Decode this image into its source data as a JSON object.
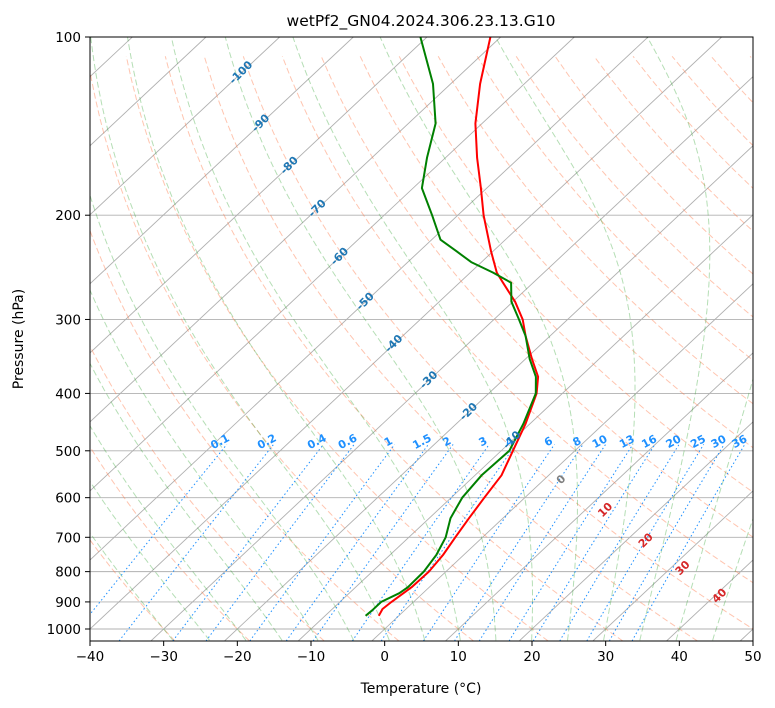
{
  "chart_data": {
    "type": "line",
    "subtype": "skew-t log-p diagram",
    "title": "wetPf2_GN04.2024.306.23.13.G10",
    "xlabel": "Temperature (°C)",
    "ylabel": "Pressure (hPa)",
    "xlim": [
      -40,
      50
    ],
    "ylim": [
      1050,
      100
    ],
    "y_scale": "log",
    "grid": true,
    "x_ticks": [
      "−40",
      "−30",
      "−20",
      "−10",
      "0",
      "10",
      "20",
      "30",
      "40",
      "50"
    ],
    "y_ticks": [
      "100",
      "200",
      "300",
      "400",
      "500",
      "600",
      "700",
      "800",
      "900",
      "1000"
    ],
    "isotherm_labels": [
      "-100",
      "-90",
      "-80",
      "-70",
      "-60",
      "-50",
      "-40",
      "-30",
      "-20",
      "-10"
    ],
    "mixing_ratio_labels": [
      "0.1",
      "0.2",
      "0.4",
      "0.6",
      "1",
      "1.5",
      "2",
      "3",
      "4",
      "6",
      "8",
      "10",
      "13",
      "16",
      "20",
      "25",
      "30",
      "36"
    ],
    "moist_adiabat_labels": [
      "0",
      "10",
      "20",
      "30",
      "40"
    ],
    "colors": {
      "temperature": "#ff0000",
      "dewpoint": "#008000",
      "isotherm_label": "#1f77b4",
      "mixing_ratio": "#1e90ff",
      "dry_adiabat": "#ff7f50",
      "moist_adiabat": "#2ca02c",
      "moist_label_zero": "#808080",
      "moist_label": "#d62728",
      "grid": "#b0b0b0"
    },
    "series": [
      {
        "name": "",
        "variable": "temperature",
        "p": [
          950,
          925,
          900,
          850,
          800,
          750,
          700,
          650,
          600,
          550,
          500,
          450,
          400,
          375,
          350,
          320,
          300,
          280,
          260,
          250,
          230,
          200,
          180,
          160,
          140,
          120,
          100
        ],
        "t": [
          -2.7,
          -3.2,
          -3.0,
          -2.4,
          -2.3,
          -2.8,
          -3.7,
          -4.6,
          -5.5,
          -6.4,
          -8.4,
          -10.6,
          -13.5,
          -15.7,
          -19.1,
          -23.3,
          -26.1,
          -29.7,
          -34.1,
          -36.4,
          -40.3,
          -46.5,
          -50.8,
          -55.7,
          -60.9,
          -66.0,
          -71.4
        ]
      },
      {
        "name": "",
        "variable": "dewpoint",
        "p": [
          950,
          930,
          900,
          870,
          850,
          800,
          750,
          700,
          650,
          600,
          550,
          500,
          450,
          400,
          375,
          350,
          320,
          300,
          280,
          260,
          250,
          240,
          230,
          220,
          200,
          180,
          160,
          140,
          120,
          100
        ],
        "td": [
          -4.5,
          -4.4,
          -4.4,
          -3.2,
          -2.9,
          -3.0,
          -3.7,
          -5.0,
          -7.1,
          -8.5,
          -9.1,
          -8.9,
          -10.9,
          -13.6,
          -16.0,
          -19.4,
          -23.3,
          -26.6,
          -30.2,
          -33.0,
          -36.9,
          -41.4,
          -45.0,
          -48.8,
          -53.5,
          -58.8,
          -62.5,
          -66.3,
          -72.4,
          -80.9
        ]
      }
    ]
  }
}
